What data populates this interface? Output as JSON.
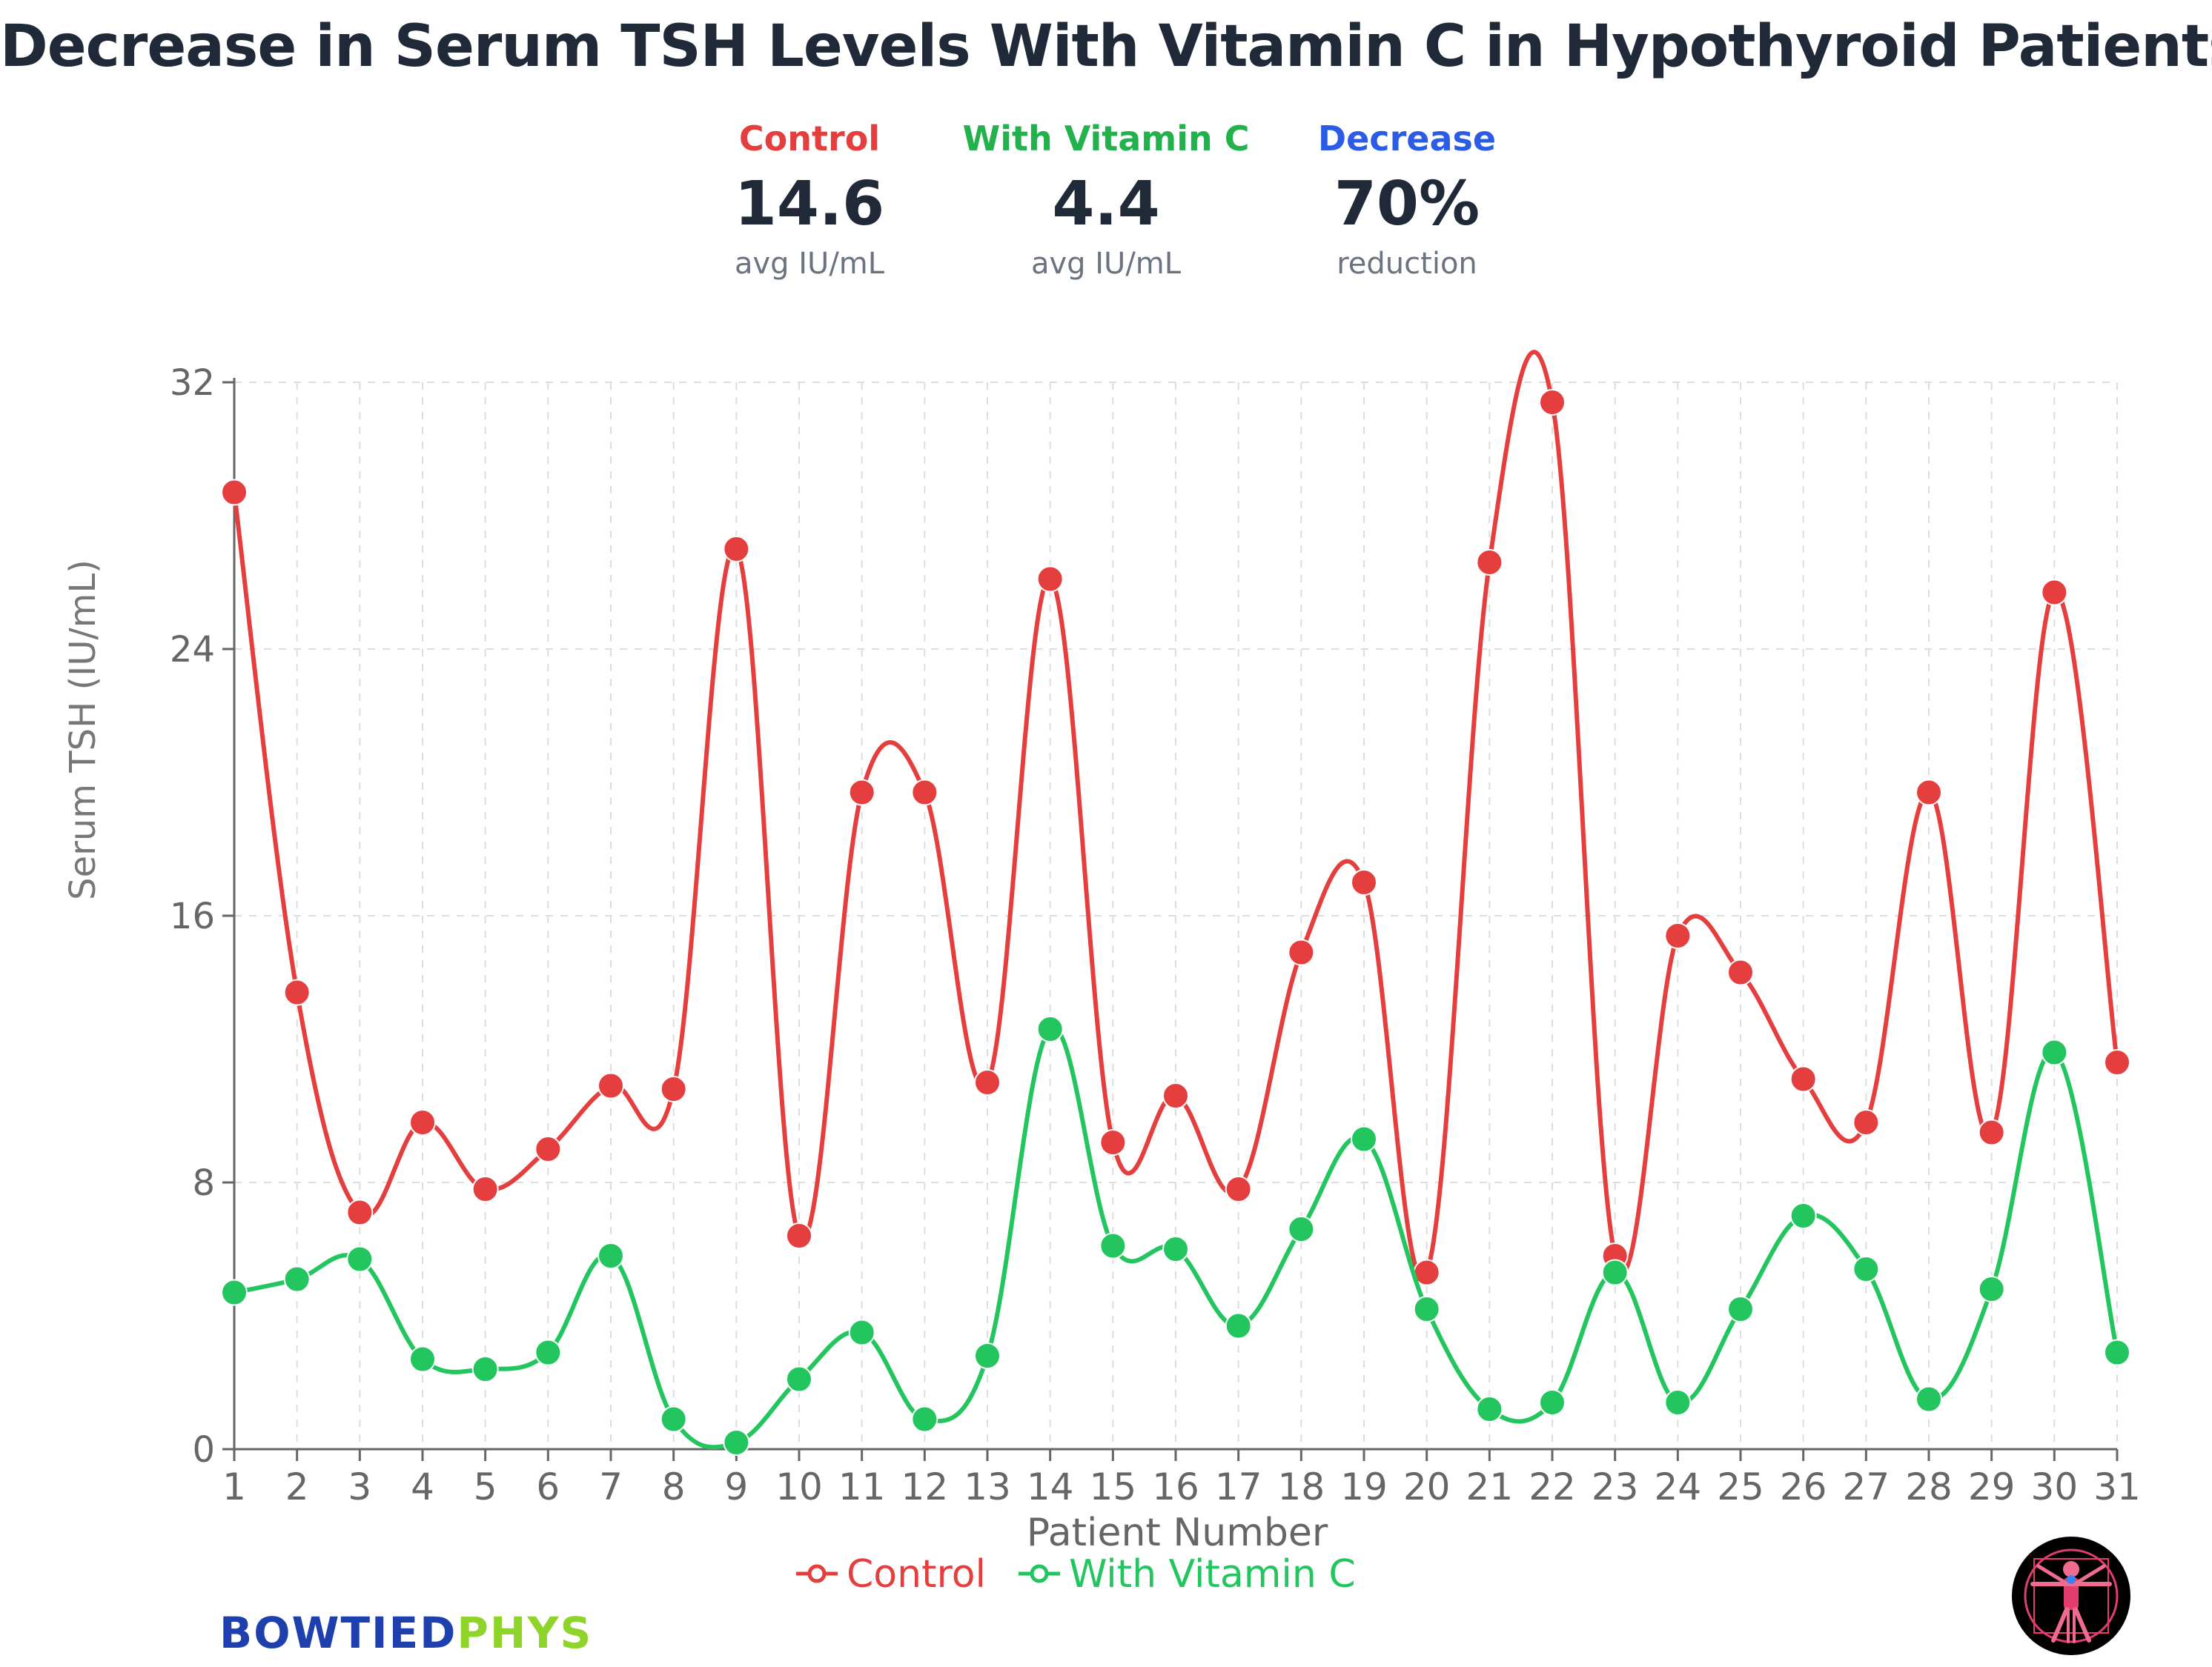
{
  "title": "Decrease in Serum TSH Levels With Vitamin C in Hypothyroid Patients",
  "stats": [
    {
      "label": "Control",
      "value": "14.6",
      "sub": "avg IU/mL",
      "color": "#e53e3e"
    },
    {
      "label": "With Vitamin C",
      "value": "4.4",
      "sub": "avg IU/mL",
      "color": "#22b14c"
    },
    {
      "label": "Decrease",
      "value": "70%",
      "sub": "reduction",
      "color": "#2b5ce6"
    }
  ],
  "brand": {
    "part1": "BOWTIED",
    "part2": "PHYS"
  },
  "chart_data": {
    "type": "line",
    "title": "Decrease in Serum TSH Levels With Vitamin C in Hypothyroid Patients",
    "xlabel": "Patient Number",
    "ylabel": "Serum TSH (IU/mL)",
    "ylim": [
      0,
      32
    ],
    "yticks": [
      0,
      8,
      16,
      24,
      32
    ],
    "grid": true,
    "legend": "bottom",
    "x": [
      1,
      2,
      3,
      4,
      5,
      6,
      7,
      8,
      9,
      10,
      11,
      12,
      13,
      14,
      15,
      16,
      17,
      18,
      19,
      20,
      21,
      22,
      23,
      24,
      25,
      26,
      27,
      28,
      29,
      30,
      31
    ],
    "series": [
      {
        "name": "Control",
        "color": "#e53e3e",
        "values": [
          28.7,
          13.7,
          7.1,
          9.8,
          7.8,
          9.0,
          10.9,
          10.8,
          27.0,
          6.4,
          19.7,
          19.7,
          11.0,
          26.1,
          9.2,
          10.6,
          7.8,
          14.9,
          17.0,
          5.3,
          26.6,
          31.4,
          5.8,
          15.4,
          14.3,
          11.1,
          9.8,
          19.7,
          9.5,
          25.7,
          11.6
        ]
      },
      {
        "name": "With Vitamin C",
        "color": "#22c55e",
        "values": [
          4.7,
          5.1,
          5.7,
          2.7,
          2.4,
          2.9,
          5.8,
          0.9,
          0.2,
          2.1,
          3.5,
          0.9,
          2.8,
          12.6,
          6.1,
          6.0,
          3.7,
          6.6,
          9.3,
          4.2,
          1.2,
          1.4,
          5.3,
          1.4,
          4.2,
          7.0,
          5.4,
          1.5,
          4.8,
          11.9,
          2.9
        ]
      }
    ]
  }
}
